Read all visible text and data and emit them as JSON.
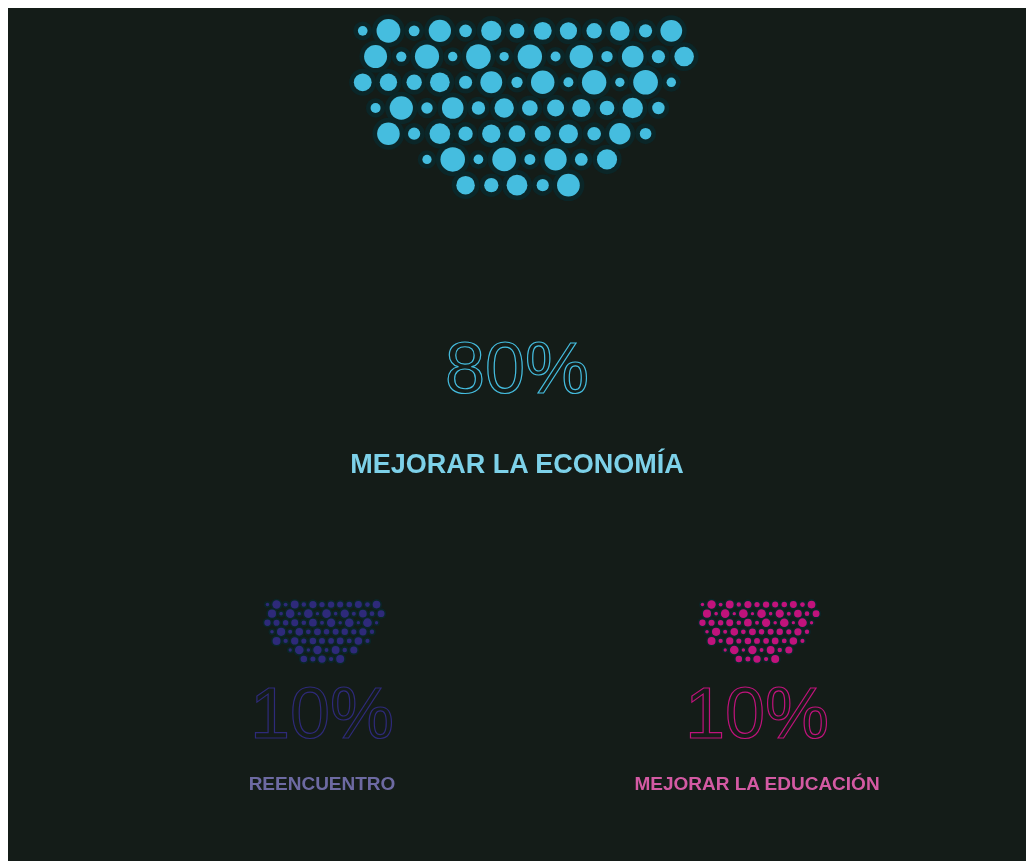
{
  "chart_data": {
    "type": "other",
    "categories": [
      "MEJORAR LA ECONOMÍA",
      "REENCUENTRO",
      "MEJORAR LA EDUCACIÓN"
    ],
    "values": [
      80,
      10,
      10
    ],
    "value_labels": [
      "80%",
      "10%",
      "10%"
    ],
    "colors": [
      "#45bddf",
      "#2e2a7a",
      "#c0137c"
    ]
  }
}
